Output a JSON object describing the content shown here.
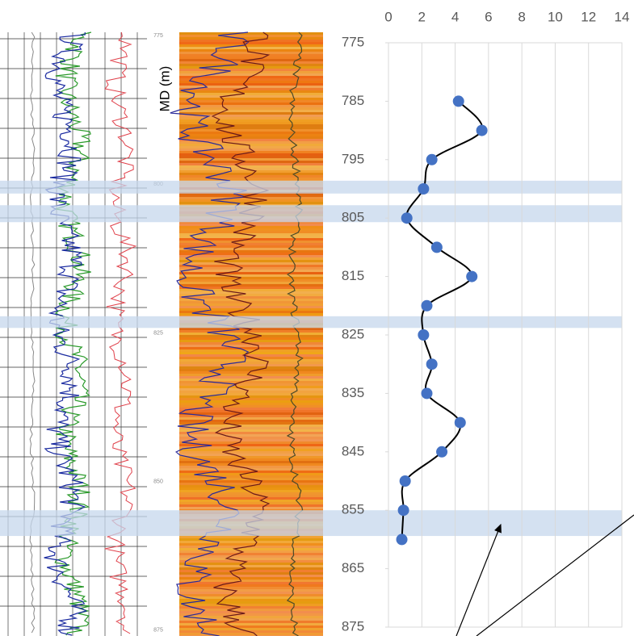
{
  "chart_data": {
    "type": "line",
    "y_axis_label": "MD (m)",
    "x": [
      4.2,
      5.6,
      2.6,
      2.1,
      1.1,
      2.9,
      5.0,
      2.3,
      2.1,
      2.6,
      2.3,
      4.3,
      3.2,
      1.0,
      0.9,
      0.8
    ],
    "y": [
      785,
      790,
      795,
      800,
      805,
      810,
      815,
      820,
      825,
      830,
      835,
      840,
      845,
      850,
      855,
      860
    ],
    "xlim": [
      0,
      14
    ],
    "xticks": [
      0,
      2,
      4,
      6,
      8,
      10,
      12,
      14
    ],
    "ylim": [
      775,
      875
    ],
    "yticks": [
      775,
      785,
      795,
      805,
      815,
      825,
      835,
      845,
      855,
      865,
      875
    ],
    "y_inverted": true,
    "grid": true,
    "color": "#4472c4",
    "line_color": "#000000",
    "bands": [
      [
        798.6,
        800.8
      ],
      [
        802.8,
        805.7
      ],
      [
        821.8,
        823.8
      ],
      [
        855.0,
        859.4
      ]
    ],
    "band_color": "#c5d7ec",
    "log_labels": [
      775,
      800,
      825,
      850,
      875
    ],
    "log_ylim": [
      769,
      876
    ]
  }
}
